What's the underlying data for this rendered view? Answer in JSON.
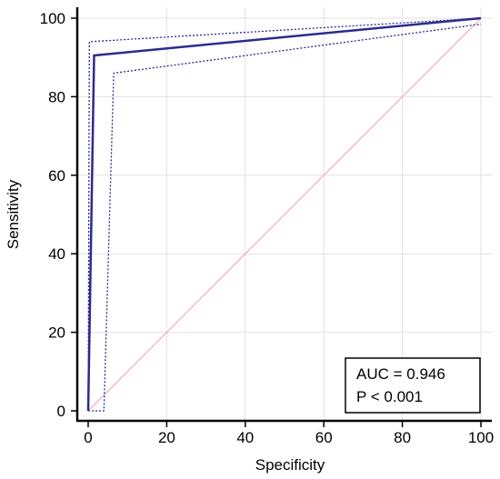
{
  "chart_data": {
    "type": "line",
    "xlabel": "Specificity",
    "ylabel": "Sensitivity",
    "xlim": [
      0,
      100
    ],
    "ylim": [
      0,
      100
    ],
    "xticks": [
      0,
      20,
      40,
      60,
      80,
      100
    ],
    "yticks": [
      0,
      20,
      40,
      60,
      80,
      100
    ],
    "grid": true,
    "series": [
      {
        "role": "roc",
        "color": "#2b2b8f",
        "style": "solid",
        "x": [
          0,
          1.5,
          100
        ],
        "y": [
          0,
          90.5,
          100
        ]
      },
      {
        "role": "ci-upper",
        "color": "#2b2b8f",
        "style": "dotted",
        "x": [
          0,
          0.3,
          100
        ],
        "y": [
          0,
          94,
          100
        ]
      },
      {
        "role": "ci-lower",
        "color": "#2b2b8f",
        "style": "dotted",
        "x": [
          0,
          4,
          6.5,
          100
        ],
        "y": [
          0,
          0,
          86,
          98.5
        ]
      },
      {
        "role": "reference",
        "color": "#f2a0b0",
        "style": "solid",
        "x": [
          0,
          100
        ],
        "y": [
          0,
          100
        ]
      }
    ],
    "annotation": {
      "auc_text": "AUC = 0.946",
      "p_text": "P < 0.001"
    }
  }
}
